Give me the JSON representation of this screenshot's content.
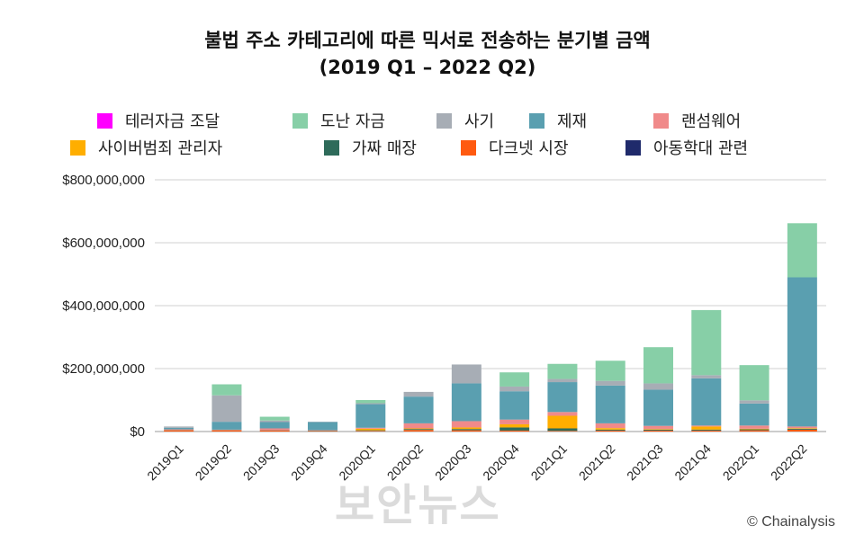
{
  "chart_data": {
    "type": "bar",
    "stacked": true,
    "title_line1": "불법 주소 카테고리에 따른 믹서로 전송하는 분기별 금액",
    "title_line2": "(2019 Q1 – 2022 Q2)",
    "xlabel": "",
    "ylabel": "",
    "ylim": [
      0,
      800000000
    ],
    "yticks": [
      0,
      200000000,
      400000000,
      600000000,
      800000000
    ],
    "ytick_labels": [
      "$0",
      "$200,000,000",
      "$400,000,000",
      "$600,000,000",
      "$800,000,000"
    ],
    "grid": true,
    "legend_position": "top",
    "categories": [
      "2019Q1",
      "2019Q2",
      "2019Q3",
      "2019Q4",
      "2020Q1",
      "2020Q2",
      "2020Q3",
      "2020Q4",
      "2021Q1",
      "2021Q2",
      "2021Q3",
      "2021Q4",
      "2022Q1",
      "2022Q2"
    ],
    "series": [
      {
        "name": "아동학대 관련",
        "color": "#1f2a6b",
        "values": [
          0,
          0,
          0,
          0,
          0,
          0,
          0,
          0,
          0,
          0,
          0,
          0,
          0,
          0
        ]
      },
      {
        "name": "다크넷 시장",
        "color": "#ff5a10",
        "values": [
          4000000,
          4000000,
          3000000,
          2000000,
          2000000,
          5000000,
          4000000,
          3000000,
          2000000,
          3000000,
          3000000,
          3000000,
          4000000,
          6000000
        ]
      },
      {
        "name": "가짜 매장",
        "color": "#2e6b5a",
        "values": [
          1000000,
          1000000,
          1000000,
          1000000,
          2000000,
          3000000,
          4000000,
          10000000,
          8000000,
          3000000,
          3000000,
          3000000,
          3000000,
          3000000
        ]
      },
      {
        "name": "사이버범죄 관리자",
        "color": "#ffae00",
        "values": [
          0,
          0,
          0,
          0,
          5000000,
          2000000,
          5000000,
          10000000,
          40000000,
          5000000,
          2000000,
          10000000,
          2000000,
          2000000
        ]
      },
      {
        "name": "랜섬웨어",
        "color": "#f08a8a",
        "values": [
          2000000,
          1000000,
          6000000,
          1000000,
          3000000,
          16000000,
          20000000,
          15000000,
          12000000,
          15000000,
          10000000,
          3000000,
          10000000,
          5000000
        ]
      },
      {
        "name": "제재",
        "color": "#5a9fb0",
        "values": [
          5000000,
          25000000,
          20000000,
          26000000,
          75000000,
          85000000,
          120000000,
          90000000,
          95000000,
          120000000,
          115000000,
          150000000,
          70000000,
          474000000
        ]
      },
      {
        "name": "사기",
        "color": "#a7adb5",
        "values": [
          4000000,
          84000000,
          5000000,
          1000000,
          3000000,
          15000000,
          60000000,
          15000000,
          10000000,
          15000000,
          20000000,
          10000000,
          10000000,
          0
        ]
      },
      {
        "name": "도난 자금",
        "color": "#87cfa7",
        "values": [
          0,
          35000000,
          12000000,
          0,
          10000000,
          0,
          0,
          45000000,
          48000000,
          64000000,
          115000000,
          207000000,
          112000000,
          172000000
        ]
      },
      {
        "name": "테러자금 조달",
        "color": "#ff00ff",
        "values": [
          0,
          0,
          0,
          0,
          0,
          0,
          0,
          0,
          0,
          0,
          0,
          0,
          0,
          0
        ]
      }
    ]
  },
  "legend": {
    "row1": [
      {
        "label": "테러자금 조달",
        "color": "#ff00ff"
      },
      {
        "label": "도난 자금",
        "color": "#87cfa7"
      },
      {
        "label": "사기",
        "color": "#a7adb5"
      },
      {
        "label": "제재",
        "color": "#5a9fb0"
      },
      {
        "label": "랜섬웨어",
        "color": "#f08a8a"
      }
    ],
    "row2": [
      {
        "label": "사이버범죄 관리자",
        "color": "#ffae00"
      },
      {
        "label": "가짜 매장",
        "color": "#2e6b5a"
      },
      {
        "label": "다크넷 시장",
        "color": "#ff5a10"
      },
      {
        "label": "아동학대 관련",
        "color": "#1f2a6b"
      }
    ]
  },
  "watermark": "보안뉴스",
  "credit": "© Chainalysis"
}
